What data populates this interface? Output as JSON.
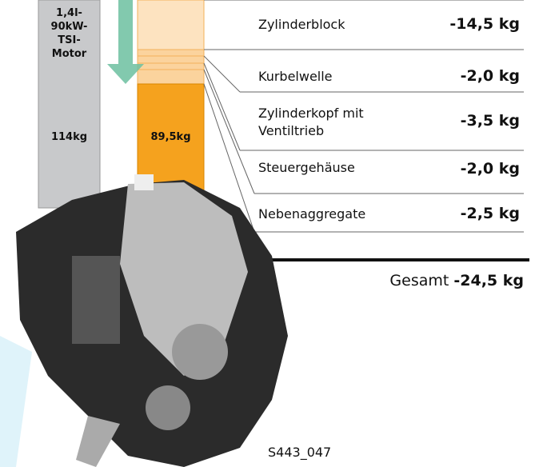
{
  "engine_label": [
    "1,4l-",
    "90kW-",
    "TSI-",
    "Motor"
  ],
  "original_weight": "114kg",
  "new_weight": "89,5kg",
  "savings": [
    {
      "part": "Zylinderblock",
      "value": "-14,5 kg"
    },
    {
      "part": "Kurbelwelle",
      "value": "-2,0 kg"
    },
    {
      "part": "Zylinderkopf mit Ventiltrieb",
      "value": "-3,5 kg"
    },
    {
      "part": "Steuergehäuse",
      "value": "-2,0 kg"
    },
    {
      "part": "Nebenaggregate",
      "value": "-2,5 kg"
    }
  ],
  "total": {
    "label": "Gesamt",
    "value": "-24,5 kg"
  },
  "figure_id": "S443_047"
}
